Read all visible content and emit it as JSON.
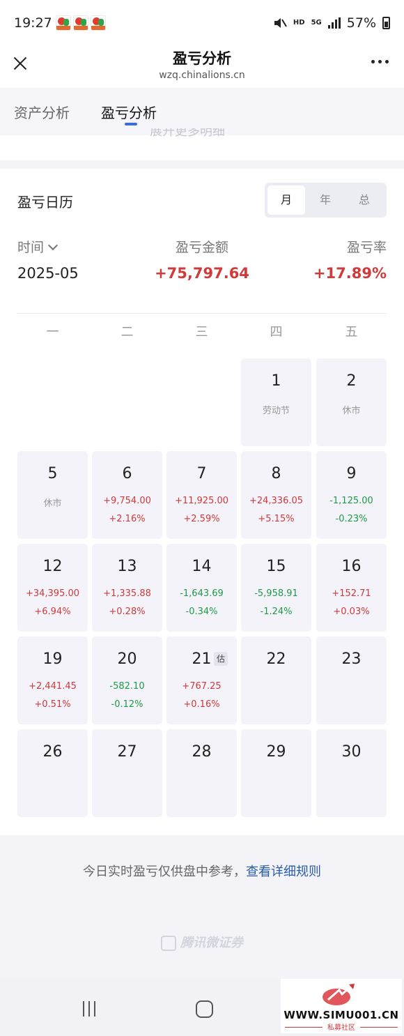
{
  "status_bar": {
    "time": "19:27",
    "hd": "HD",
    "net": "5G",
    "battery": "57%"
  },
  "header": {
    "title": "盈亏分析",
    "subtitle": "wzq.chinalions.cn"
  },
  "page_tabs": [
    {
      "label": "资产分析",
      "active": false
    },
    {
      "label": "盈亏分析",
      "active": true
    }
  ],
  "peek_text": "展开更多明细",
  "calendar": {
    "title": "盈亏日历",
    "modes": [
      {
        "label": "月",
        "active": true
      },
      {
        "label": "年",
        "active": false
      },
      {
        "label": "总",
        "active": false
      }
    ],
    "summary": {
      "time_label": "时间",
      "amount_label": "盈亏金额",
      "rate_label": "盈亏率",
      "period": "2025-05",
      "amount": "+75,797.64",
      "rate": "+17.89%"
    },
    "weekdays": [
      "一",
      "二",
      "三",
      "四",
      "五"
    ],
    "days": [
      {
        "day": "1",
        "col": 3,
        "row": 0,
        "note": "劳动节"
      },
      {
        "day": "2",
        "col": 4,
        "row": 0,
        "note": "休市"
      },
      {
        "day": "5",
        "col": 0,
        "row": 1,
        "note": "休市"
      },
      {
        "day": "6",
        "col": 1,
        "row": 1,
        "amount": "+9,754.00",
        "rate": "+2.16%",
        "trend": "up"
      },
      {
        "day": "7",
        "col": 2,
        "row": 1,
        "amount": "+11,925.00",
        "rate": "+2.59%",
        "trend": "up"
      },
      {
        "day": "8",
        "col": 3,
        "row": 1,
        "amount": "+24,336.05",
        "rate": "+5.15%",
        "trend": "up"
      },
      {
        "day": "9",
        "col": 4,
        "row": 1,
        "amount": "-1,125.00",
        "rate": "-0.23%",
        "trend": "down"
      },
      {
        "day": "12",
        "col": 0,
        "row": 2,
        "amount": "+34,395.00",
        "rate": "+6.94%",
        "trend": "up"
      },
      {
        "day": "13",
        "col": 1,
        "row": 2,
        "amount": "+1,335.88",
        "rate": "+0.28%",
        "trend": "up"
      },
      {
        "day": "14",
        "col": 2,
        "row": 2,
        "amount": "-1,643.69",
        "rate": "-0.34%",
        "trend": "down"
      },
      {
        "day": "15",
        "col": 3,
        "row": 2,
        "amount": "-5,958.91",
        "rate": "-1.24%",
        "trend": "down"
      },
      {
        "day": "16",
        "col": 4,
        "row": 2,
        "amount": "+152.71",
        "rate": "+0.03%",
        "trend": "up"
      },
      {
        "day": "19",
        "col": 0,
        "row": 3,
        "amount": "+2,441.45",
        "rate": "+0.51%",
        "trend": "up"
      },
      {
        "day": "20",
        "col": 1,
        "row": 3,
        "amount": "-582.10",
        "rate": "-0.12%",
        "trend": "down"
      },
      {
        "day": "21",
        "col": 2,
        "row": 3,
        "amount": "+767.25",
        "rate": "+0.16%",
        "trend": "up",
        "badge": "估"
      },
      {
        "day": "22",
        "col": 3,
        "row": 3
      },
      {
        "day": "23",
        "col": 4,
        "row": 3
      },
      {
        "day": "26",
        "col": 0,
        "row": 4
      },
      {
        "day": "27",
        "col": 1,
        "row": 4
      },
      {
        "day": "28",
        "col": 2,
        "row": 4
      },
      {
        "day": "29",
        "col": 3,
        "row": 4
      },
      {
        "day": "30",
        "col": 4,
        "row": 4
      }
    ]
  },
  "footer": {
    "note": "今日实时盈亏仅供盘中参考，",
    "link": "查看详细规则",
    "brand": "腾讯微证券"
  },
  "watermark": {
    "url": "WWW.SIMU001.CN",
    "sub": "私募社区"
  },
  "colors": {
    "up": "#cf3a3a",
    "down": "#1f9a46",
    "accent": "#3a6fd8",
    "link": "#2a5da8"
  }
}
